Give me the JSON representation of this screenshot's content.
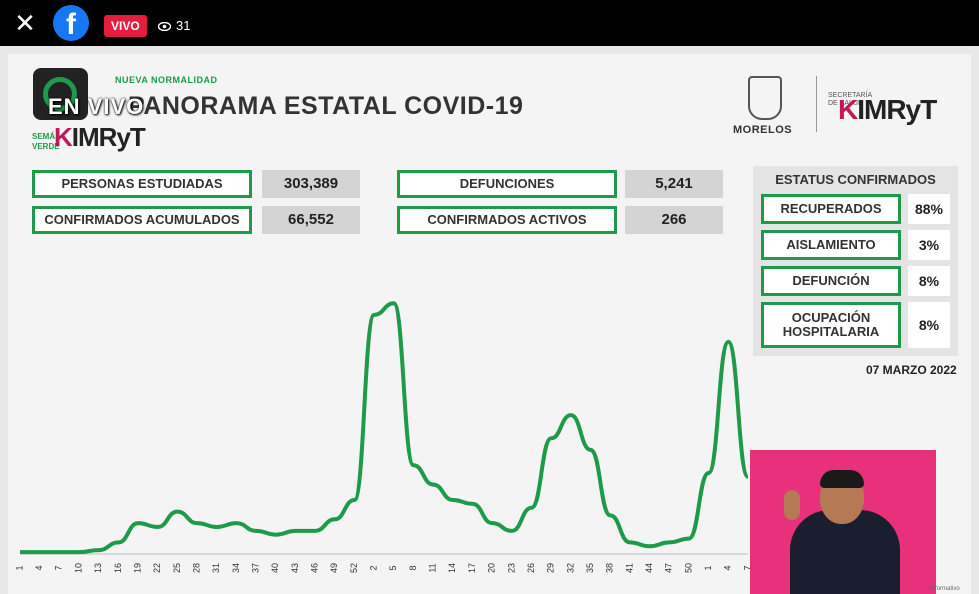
{
  "topbar": {
    "live_label": "VIVO",
    "viewer_count": "31",
    "fb_letter": "f"
  },
  "slide": {
    "nueva_normalidad": "NUEVA NORMALIDAD",
    "overlay_text": "EN VIVO",
    "semaforo": "SEMÁ\nVERDE",
    "imryt_k": "K",
    "imryt_text": "IMRyT",
    "title": "PANORAMA ESTATAL COVID-19",
    "morelos": "MORELOS",
    "secretaria": "SECRETARÍA DE SALUD",
    "stats": {
      "personas_label": "PERSONAS ESTUDIADAS",
      "personas_value": "303,389",
      "confirmados_label": "CONFIRMADOS ACUMULADOS",
      "confirmados_value": "66,552",
      "defunciones_label": "DEFUNCIONES",
      "defunciones_value": "5,241",
      "activos_label": "CONFIRMADOS ACTIVOS",
      "activos_value": "266"
    },
    "status": {
      "heading": "ESTATUS CONFIRMADOS",
      "rows": [
        {
          "label": "RECUPERADOS",
          "value": "88%"
        },
        {
          "label": "AISLAMIENTO",
          "value": "3%"
        },
        {
          "label": "DEFUNCIÓN",
          "value": "8%"
        },
        {
          "label": "OCUPACIÓN HOSPITALARIA",
          "value": "8%"
        }
      ]
    },
    "date": "07 MARZO 2022",
    "watermark": "Informativo"
  },
  "colors": {
    "accent_green": "#1d9a4a",
    "live_red": "#e41e3f",
    "facebook_blue": "#1877f2",
    "interpreter_bg": "#e8317a"
  },
  "chart_data": {
    "type": "line",
    "x": [
      "1",
      "4",
      "7",
      "10",
      "13",
      "16",
      "19",
      "22",
      "25",
      "28",
      "31",
      "34",
      "37",
      "40",
      "43",
      "46",
      "49",
      "52",
      "2",
      "5",
      "8",
      "11",
      "14",
      "17",
      "20",
      "23",
      "26",
      "29",
      "32",
      "35",
      "38",
      "41",
      "44",
      "47",
      "50",
      "1",
      "4",
      "7"
    ],
    "series": [
      {
        "values": [
          0.5,
          0.5,
          0.5,
          0.5,
          1,
          3,
          8,
          7,
          11,
          8,
          7,
          8,
          6,
          5,
          6,
          6,
          9,
          14,
          62,
          65,
          23,
          18,
          14,
          13,
          8,
          6,
          12,
          30,
          36,
          27,
          10,
          3,
          2,
          3,
          4,
          21,
          55,
          20
        ]
      }
    ],
    "ylim": [
      0,
      70
    ],
    "grid": false
  }
}
